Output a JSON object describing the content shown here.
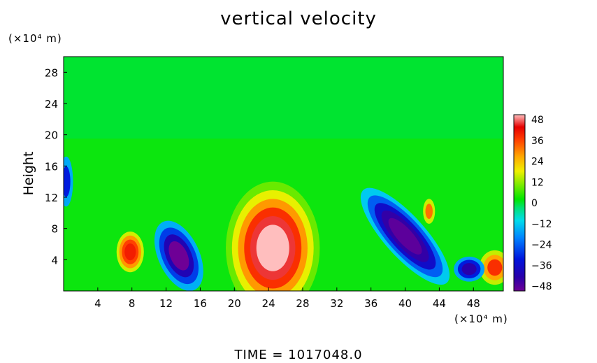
{
  "chart_data": {
    "type": "heatmap",
    "title": "vertical velocity",
    "ylabel": "Height",
    "xlabel": "",
    "x_unit": "(×10⁴ m)",
    "y_unit": "(×10⁴ m)",
    "footer": "TIME  =  1017048.0",
    "xlim": [
      0,
      51.5
    ],
    "ylim": [
      0,
      30
    ],
    "x_ticks": [
      4,
      8,
      12,
      16,
      20,
      24,
      28,
      32,
      36,
      40,
      44,
      48
    ],
    "y_ticks": [
      4,
      8,
      12,
      16,
      20,
      24,
      28
    ],
    "colorbar": {
      "min": -48,
      "max": 48,
      "ticks": [
        48,
        36,
        24,
        12,
        0,
        -12,
        -24,
        -36,
        -48
      ],
      "tick_labels": [
        "48",
        "36",
        "24",
        "12",
        "0",
        "−12",
        "−24",
        "−36",
        "−48"
      ]
    },
    "features": [
      {
        "name": "updraft-core",
        "x": 24.5,
        "y": 5.5,
        "peak": 48
      },
      {
        "name": "updraft-small",
        "x": 7.8,
        "y": 5.0,
        "peak": 38
      },
      {
        "name": "updraft-right-edge",
        "x": 50.5,
        "y": 3.0,
        "peak": 36
      },
      {
        "name": "updraft-small-2",
        "x": 42.8,
        "y": 10.2,
        "peak": 30
      },
      {
        "name": "downdraft-left",
        "x": 13.5,
        "y": 4.5,
        "peak": -48
      },
      {
        "name": "downdraft-right-band",
        "x": 40.0,
        "y": 7.0,
        "peak": -46
      },
      {
        "name": "downdraft-right-low",
        "x": 47.5,
        "y": 2.8,
        "peak": -40
      },
      {
        "name": "downdraft-edge",
        "x": 0.3,
        "y": 14.0,
        "peak": -30
      }
    ]
  }
}
